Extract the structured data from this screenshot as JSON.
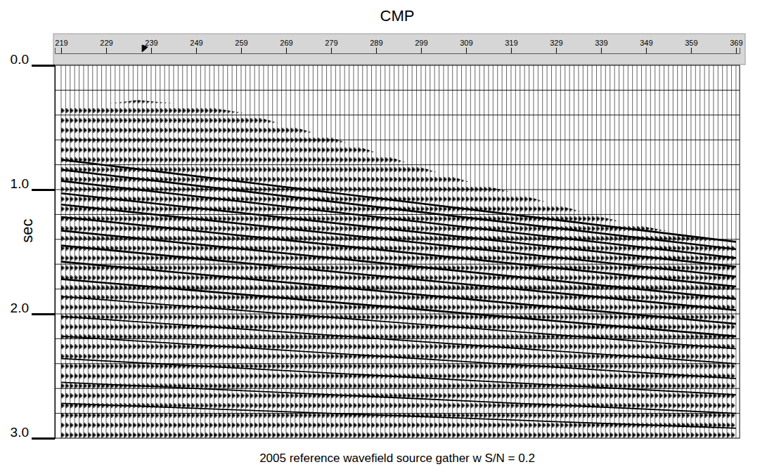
{
  "chart_data": {
    "type": "seismic_wiggle",
    "title": "CMP",
    "caption": "2005 reference wavefield source gather w S/N = 0.2",
    "y_label": "sec",
    "xlim": [
      217.6,
      369.8
    ],
    "xticks": [
      219,
      229,
      239,
      249,
      259,
      269,
      279,
      289,
      299,
      309,
      319,
      329,
      339,
      349,
      359,
      369
    ],
    "ylim": [
      0,
      3
    ],
    "yticks": [
      {
        "value": 0,
        "label": "0.0"
      },
      {
        "value": 1,
        "label": "1.0"
      },
      {
        "value": 2,
        "label": "2.0"
      },
      {
        "value": 3,
        "label": "3.0"
      }
    ],
    "y_grid": [
      0.2,
      0.4,
      0.6,
      0.8,
      1.0,
      1.2,
      1.4,
      1.6,
      1.8,
      2.0,
      2.2,
      2.4,
      2.6,
      2.8
    ],
    "grid": true,
    "cursor": 237,
    "traces": [
      219,
      220,
      221,
      222,
      223,
      224,
      225,
      226,
      227,
      228,
      229,
      230,
      231,
      232,
      233,
      234,
      235,
      236,
      237,
      238,
      239,
      240,
      241,
      242,
      243,
      244,
      245,
      246,
      247,
      248,
      249,
      250,
      251,
      252,
      253,
      254,
      255,
      256,
      257,
      258,
      259,
      260,
      261,
      262,
      263,
      264,
      265,
      266,
      267,
      268,
      269,
      270,
      271,
      272,
      273,
      274,
      275,
      276,
      277,
      278,
      279,
      280,
      281,
      282,
      283,
      284,
      285,
      286,
      287,
      288,
      289,
      290,
      291,
      292,
      293,
      294,
      295,
      296,
      297,
      298,
      299,
      300,
      301,
      302,
      303,
      304,
      305,
      306,
      307,
      308,
      309,
      310,
      311,
      312,
      313,
      314,
      315,
      316,
      317,
      318,
      319,
      320,
      321,
      322,
      323,
      324,
      325,
      326,
      327,
      328,
      329,
      330,
      331,
      332,
      333,
      334,
      335,
      336,
      337,
      338,
      339,
      340,
      341,
      342,
      343,
      344,
      345,
      346,
      347,
      348,
      349,
      350,
      351,
      352,
      353,
      354,
      355,
      356,
      357,
      358,
      359,
      360,
      361,
      362,
      363,
      364,
      365,
      366,
      367,
      368,
      369
    ],
    "first_break": {
      "x": [
        219,
        229,
        236,
        249,
        259,
        269,
        279,
        289,
        299,
        309,
        319,
        329,
        339,
        349,
        359,
        369
      ],
      "values": [
        0.34,
        0.31,
        0.28,
        0.32,
        0.38,
        0.48,
        0.58,
        0.7,
        0.82,
        0.93,
        1.02,
        1.12,
        1.22,
        1.3,
        1.37,
        1.42
      ]
    },
    "reflector_x": [
      219,
      369
    ],
    "reflectors": [
      [
        0.76,
        1.42
      ],
      [
        0.84,
        1.48
      ],
      [
        0.93,
        1.55
      ],
      [
        1.03,
        1.62
      ],
      [
        1.12,
        1.7
      ],
      [
        1.22,
        1.78
      ],
      [
        1.33,
        1.88
      ],
      [
        1.45,
        1.97
      ],
      [
        1.58,
        2.08
      ],
      [
        1.72,
        2.18
      ],
      [
        1.86,
        2.28
      ],
      [
        2.02,
        2.4
      ],
      [
        2.18,
        2.52
      ],
      [
        2.36,
        2.65
      ],
      [
        2.55,
        2.8
      ],
      [
        2.72,
        2.92
      ]
    ]
  }
}
